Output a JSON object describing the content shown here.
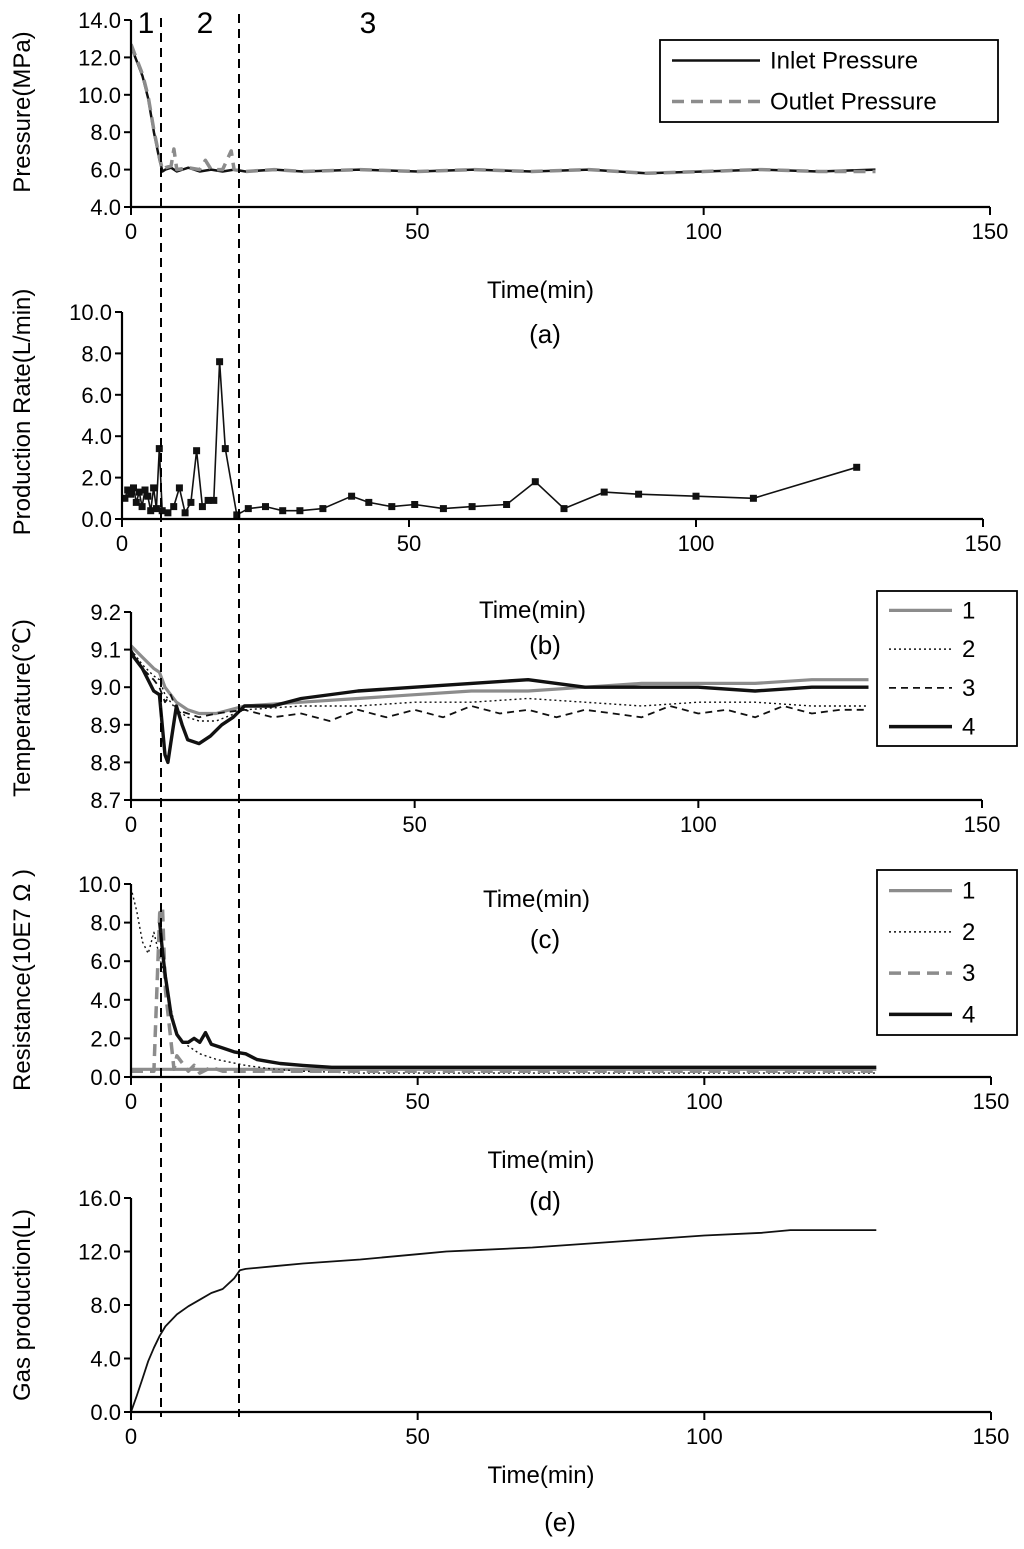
{
  "chart_data": [
    {
      "id": "a",
      "type": "line",
      "caption": "(a)",
      "xlabel": "Time(min)",
      "ylabel": "Pressure(MPa)",
      "xlim": [
        0,
        150
      ],
      "ylim": [
        4,
        14
      ],
      "xticks": [
        0,
        50,
        100,
        150
      ],
      "xtick_labels": [
        "0",
        "50",
        "100",
        "150"
      ],
      "yticks": [
        4,
        6,
        8,
        10,
        12,
        14
      ],
      "ytick_labels": [
        "4.0",
        "6.0",
        "8.0",
        "10.0",
        "12.0",
        "14.0"
      ],
      "legend": "top-right",
      "series": [
        {
          "name": "Inlet Pressure",
          "style": "solid-black",
          "x": [
            0,
            1,
            2,
            3,
            4,
            5,
            5.5,
            6,
            7,
            8,
            10,
            12,
            14,
            16,
            18,
            20,
            25,
            30,
            40,
            50,
            60,
            70,
            80,
            90,
            100,
            110,
            120,
            130
          ],
          "y": [
            12.6,
            11.8,
            11.0,
            9.8,
            8.0,
            6.5,
            5.9,
            6.0,
            6.1,
            5.9,
            6.1,
            5.9,
            6.0,
            5.9,
            6.0,
            5.9,
            6.0,
            5.9,
            6.0,
            5.9,
            6.0,
            5.9,
            6.0,
            5.8,
            5.9,
            6.0,
            5.9,
            6.0
          ]
        },
        {
          "name": "Outlet Pressure",
          "style": "dashed-gray",
          "x": [
            0,
            1,
            2,
            3,
            4,
            5,
            5.5,
            6,
            7,
            7.5,
            8,
            10,
            12,
            13,
            14,
            16,
            17.5,
            18,
            20,
            25,
            30,
            40,
            50,
            60,
            70,
            80,
            90,
            100,
            110,
            120,
            130
          ],
          "y": [
            12.7,
            11.9,
            11.1,
            9.9,
            8.1,
            6.6,
            6.0,
            6.1,
            6.2,
            7.1,
            6.0,
            6.1,
            6.0,
            6.5,
            6.0,
            6.0,
            7.0,
            6.0,
            5.9,
            6.0,
            5.9,
            6.0,
            5.9,
            6.0,
            5.9,
            6.0,
            5.8,
            5.9,
            6.0,
            5.9,
            5.9
          ]
        }
      ]
    },
    {
      "id": "b",
      "type": "line",
      "caption": "(b)",
      "xlabel": "Time(min)",
      "ylabel": "Production Rate(L/min)",
      "xlim": [
        0,
        150
      ],
      "ylim": [
        0,
        10
      ],
      "xticks": [
        0,
        50,
        100,
        150
      ],
      "xtick_labels": [
        "0",
        "50",
        "100",
        "150"
      ],
      "yticks": [
        0,
        2,
        4,
        6,
        8,
        10
      ],
      "ytick_labels": [
        "0.0",
        "2.0",
        "4.0",
        "6.0",
        "8.0",
        "10.0"
      ],
      "series": [
        {
          "name": "Production Rate",
          "style": "solid-black-square-markers",
          "x": [
            0.5,
            1,
            1.5,
            2,
            2.5,
            3,
            3.5,
            4,
            4.5,
            5,
            5.5,
            6,
            6.5,
            7,
            8,
            9,
            10,
            11,
            12,
            13,
            14,
            15,
            16,
            17,
            18,
            20,
            22,
            25,
            28,
            31,
            35,
            40,
            43,
            47,
            51,
            56,
            61,
            67,
            72,
            77,
            84,
            90,
            100,
            110,
            128
          ],
          "y": [
            1.0,
            1.4,
            1.2,
            1.5,
            0.8,
            1.3,
            0.6,
            1.4,
            1.1,
            0.4,
            1.5,
            0.5,
            3.4,
            0.4,
            0.3,
            0.6,
            1.5,
            0.3,
            0.8,
            3.3,
            0.6,
            0.9,
            0.9,
            7.6,
            3.4,
            0.2,
            0.5,
            0.6,
            0.4,
            0.4,
            0.5,
            1.1,
            0.8,
            0.6,
            0.7,
            0.5,
            0.6,
            0.7,
            1.8,
            0.5,
            1.3,
            1.2,
            1.1,
            1.0,
            2.5
          ]
        }
      ]
    },
    {
      "id": "c",
      "type": "line",
      "caption": "(c)",
      "xlabel": "Time(min)",
      "ylabel": "Temperature(℃)",
      "xlim": [
        0,
        150
      ],
      "ylim": [
        8.7,
        9.2
      ],
      "xticks": [
        0,
        50,
        100,
        150
      ],
      "xtick_labels": [
        "0",
        "50",
        "100",
        "150"
      ],
      "yticks": [
        8.7,
        8.8,
        8.9,
        9.0,
        9.1,
        9.2
      ],
      "ytick_labels": [
        "8.7",
        "8.8",
        "8.9",
        "9.0",
        "9.1",
        "9.2"
      ],
      "legend": "top-right",
      "series": [
        {
          "name": "1",
          "style": "solid-gray",
          "x": [
            0,
            2,
            4,
            5,
            6,
            8,
            10,
            12,
            15,
            20,
            30,
            40,
            50,
            60,
            70,
            80,
            90,
            100,
            110,
            120,
            130
          ],
          "y": [
            9.11,
            9.08,
            9.05,
            9.04,
            9.0,
            8.96,
            8.94,
            8.93,
            8.93,
            8.95,
            8.96,
            8.97,
            8.98,
            8.99,
            8.99,
            9.0,
            9.01,
            9.01,
            9.01,
            9.02,
            9.02
          ]
        },
        {
          "name": "2",
          "style": "dotted-black",
          "x": [
            0,
            2,
            4,
            5,
            6,
            8,
            10,
            12,
            15,
            20,
            30,
            40,
            50,
            60,
            70,
            80,
            90,
            100,
            110,
            120,
            130
          ],
          "y": [
            9.1,
            9.06,
            9.03,
            9.02,
            8.98,
            8.94,
            8.92,
            8.91,
            8.91,
            8.94,
            8.95,
            8.95,
            8.96,
            8.96,
            8.97,
            8.96,
            8.95,
            8.96,
            8.96,
            8.95,
            8.95
          ]
        },
        {
          "name": "3",
          "style": "dashed-black",
          "x": [
            0,
            2,
            4,
            5,
            6,
            7,
            8,
            10,
            12,
            15,
            20,
            25,
            30,
            35,
            40,
            45,
            50,
            55,
            60,
            65,
            70,
            75,
            80,
            85,
            90,
            95,
            100,
            105,
            110,
            115,
            120,
            125,
            130
          ],
          "y": [
            9.1,
            9.05,
            9.02,
            9.0,
            8.96,
            8.98,
            8.94,
            8.93,
            8.92,
            8.93,
            8.94,
            8.92,
            8.93,
            8.91,
            8.94,
            8.92,
            8.94,
            8.92,
            8.95,
            8.93,
            8.94,
            8.92,
            8.94,
            8.93,
            8.92,
            8.95,
            8.93,
            8.94,
            8.92,
            8.95,
            8.93,
            8.94,
            8.94
          ]
        },
        {
          "name": "4",
          "style": "solid-black-thick",
          "x": [
            0,
            2,
            4,
            5,
            6,
            6.5,
            7,
            8,
            9,
            10,
            12,
            14,
            16,
            18,
            20,
            25,
            30,
            40,
            50,
            60,
            70,
            80,
            90,
            100,
            110,
            120,
            130
          ],
          "y": [
            9.09,
            9.05,
            8.99,
            8.98,
            8.82,
            8.8,
            8.85,
            8.95,
            8.9,
            8.86,
            8.85,
            8.87,
            8.9,
            8.92,
            8.95,
            8.95,
            8.97,
            8.99,
            9.0,
            9.01,
            9.02,
            9.0,
            9.0,
            9.0,
            8.99,
            9.0,
            9.0
          ]
        }
      ]
    },
    {
      "id": "d",
      "type": "line",
      "caption": "(d)",
      "xlabel": "Time(min)",
      "ylabel": "Resistance(10E7 Ω  )",
      "xlim": [
        0,
        150
      ],
      "ylim": [
        0,
        10
      ],
      "xticks": [
        0,
        50,
        100,
        150
      ],
      "xtick_labels": [
        "0",
        "50",
        "100",
        "150"
      ],
      "yticks": [
        0,
        2,
        4,
        6,
        8,
        10
      ],
      "ytick_labels": [
        "0.0",
        "2.0",
        "4.0",
        "6.0",
        "8.0",
        "10.0"
      ],
      "legend": "top-right",
      "series": [
        {
          "name": "1",
          "style": "solid-gray",
          "x": [
            0,
            10,
            20,
            40,
            60,
            80,
            100,
            120,
            130
          ],
          "y": [
            0.4,
            0.4,
            0.4,
            0.4,
            0.4,
            0.4,
            0.4,
            0.4,
            0.4
          ]
        },
        {
          "name": "2",
          "style": "dotted-black",
          "x": [
            0,
            1,
            2,
            3,
            4,
            5,
            6,
            7,
            8,
            10,
            12,
            15,
            20,
            25,
            30,
            40,
            60,
            80,
            100,
            130
          ],
          "y": [
            9.8,
            8.6,
            7.0,
            6.4,
            7.5,
            6.2,
            5.0,
            3.5,
            2.2,
            1.6,
            1.2,
            0.9,
            0.6,
            0.4,
            0.3,
            0.2,
            0.2,
            0.2,
            0.2,
            0.2
          ]
        },
        {
          "name": "3",
          "style": "dashed-gray",
          "x": [
            0,
            4,
            5,
            5.5,
            6,
            7,
            7.5,
            8,
            10,
            11,
            12,
            14,
            16,
            20,
            30,
            50,
            80,
            130
          ],
          "y": [
            0.3,
            0.3,
            8.5,
            8.8,
            4.5,
            1.8,
            0.4,
            1.1,
            0.3,
            0.6,
            0.2,
            0.5,
            0.3,
            0.3,
            0.3,
            0.3,
            0.3,
            0.3
          ]
        },
        {
          "name": "4",
          "style": "solid-black-thick",
          "x": [
            5,
            5.5,
            6,
            6.5,
            7,
            8,
            9,
            10,
            11,
            12,
            13,
            14,
            16,
            18,
            20,
            22,
            24,
            26,
            30,
            35,
            40,
            50,
            60,
            80,
            100,
            130
          ],
          "y": [
            8.0,
            6.5,
            5.2,
            4.2,
            3.2,
            2.2,
            1.8,
            1.8,
            2.0,
            1.8,
            2.3,
            1.7,
            1.5,
            1.3,
            1.2,
            0.9,
            0.8,
            0.7,
            0.6,
            0.5,
            0.5,
            0.5,
            0.5,
            0.5,
            0.5,
            0.5
          ]
        }
      ]
    },
    {
      "id": "e",
      "type": "line",
      "caption": "(e)",
      "xlabel": "Time(min)",
      "ylabel": "Gas production(L)",
      "xlim": [
        0,
        150
      ],
      "ylim": [
        0,
        16
      ],
      "xticks": [
        0,
        50,
        100,
        150
      ],
      "xtick_labels": [
        "0",
        "50",
        "100",
        "150"
      ],
      "yticks": [
        0,
        4,
        8,
        12,
        16
      ],
      "ytick_labels": [
        "0.0",
        "4.0",
        "8.0",
        "12.0",
        "16.0"
      ],
      "series": [
        {
          "name": "Gas production",
          "style": "solid-black-thin",
          "x": [
            0,
            1,
            2,
            3,
            4,
            5,
            6,
            8,
            10,
            12,
            14,
            16,
            18,
            19,
            20,
            25,
            30,
            40,
            50,
            55,
            60,
            70,
            80,
            90,
            100,
            110,
            115,
            130
          ],
          "y": [
            0,
            1.2,
            2.5,
            3.8,
            4.8,
            5.7,
            6.4,
            7.3,
            7.9,
            8.4,
            8.9,
            9.2,
            10.0,
            10.6,
            10.7,
            10.9,
            11.1,
            11.4,
            11.8,
            12.0,
            12.1,
            12.3,
            12.6,
            12.9,
            13.2,
            13.4,
            13.6,
            13.6
          ]
        }
      ]
    }
  ],
  "stage_markers": {
    "labels": [
      "1",
      "2",
      "3"
    ],
    "boundaries_min": [
      5.3,
      19.0
    ]
  }
}
